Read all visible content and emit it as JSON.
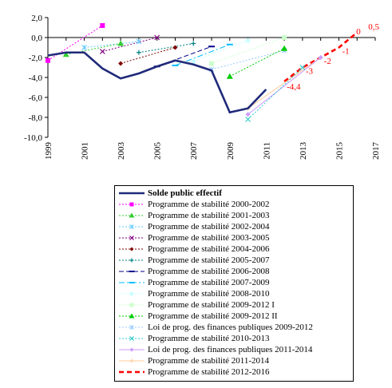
{
  "chart_data": {
    "type": "line",
    "title": "",
    "xlabel": "",
    "ylabel": "",
    "ylim": [
      -10,
      2
    ],
    "xlim": [
      1999,
      2017
    ],
    "y_ticks": [
      "2,0",
      "0,0",
      "-2,0",
      "-4,0",
      "-6,0",
      "-8,0",
      "-10,0"
    ],
    "x_ticks": [
      "1999",
      "2001",
      "2003",
      "2005",
      "2007",
      "2009",
      "2011",
      "2013",
      "2015",
      "2017"
    ],
    "grid": false,
    "legend_position": "bottom",
    "series": [
      {
        "name": "Solde public effectif",
        "color": "#1f2a7a",
        "style": "solid-bold",
        "marker": "none",
        "x": [
          1999,
          2000,
          2001,
          2002,
          2003,
          2004,
          2005,
          2006,
          2007,
          2008,
          2009,
          2010,
          2011
        ],
        "y": [
          -1.8,
          -1.5,
          -1.5,
          -3.1,
          -4.1,
          -3.6,
          -2.9,
          -2.3,
          -2.7,
          -3.3,
          -7.5,
          -7.1,
          -5.2
        ]
      },
      {
        "name": "Programme de stabilité 2000-2002",
        "color": "#ff00ff",
        "style": "dotted",
        "marker": "square",
        "x": [
          1999,
          2002
        ],
        "y": [
          -2.3,
          1.2
        ]
      },
      {
        "name": "Programme de stabilité 2001-2003",
        "color": "#33cc33",
        "style": "dotted",
        "marker": "triangle",
        "x": [
          2000,
          2003
        ],
        "y": [
          -1.7,
          -0.6
        ]
      },
      {
        "name": "Programme de stabilité 2002-2004",
        "color": "#66ccff",
        "style": "dotted",
        "marker": "cross",
        "x": [
          2001,
          2004
        ],
        "y": [
          -1.0,
          -0.4
        ]
      },
      {
        "name": "Programme de stabilité 2003-2005",
        "color": "#800080",
        "style": "dotted",
        "marker": "x",
        "x": [
          2002,
          2005
        ],
        "y": [
          -1.4,
          0.0
        ]
      },
      {
        "name": "Programme de stabilité 2004-2006",
        "color": "#800000",
        "style": "dotted",
        "marker": "diamond",
        "x": [
          2003,
          2006
        ],
        "y": [
          -2.6,
          -1.0
        ]
      },
      {
        "name": "Programme de stabilité 2005-2007",
        "color": "#008080",
        "style": "dotted",
        "marker": "plus",
        "x": [
          2004,
          2007
        ],
        "y": [
          -1.5,
          -0.6
        ]
      },
      {
        "name": "Programme de stabilité 2006-2008",
        "color": "#00008b",
        "style": "dashed",
        "marker": "dash",
        "x": [
          2005,
          2008
        ],
        "y": [
          -2.9,
          -0.9
        ]
      },
      {
        "name": "Programme de stabilité 2007-2009",
        "color": "#00bfff",
        "style": "dashdot",
        "marker": "dash",
        "x": [
          2006,
          2009
        ],
        "y": [
          -2.8,
          -0.7
        ]
      },
      {
        "name": "Programme de stabilité 2008-2010",
        "color": "#ccffff",
        "style": "dotted",
        "marker": "circle",
        "x": [
          2007,
          2010
        ],
        "y": [
          -2.4,
          -0.3
        ]
      },
      {
        "name": "Programme de stabilité 2009-2012 I",
        "color": "#ccffcc",
        "style": "dotted",
        "marker": "square",
        "x": [
          2008,
          2012
        ],
        "y": [
          -2.6,
          0.0
        ]
      },
      {
        "name": "Programme de stabilité 2009-2012 II",
        "color": "#00cc00",
        "style": "dotted",
        "marker": "triangle",
        "x": [
          2009,
          2012
        ],
        "y": [
          -3.9,
          -1.1
        ]
      },
      {
        "name": "Loi de prog. des finances publiques 2009-2012",
        "color": "#99ccff",
        "style": "dotted",
        "marker": "cross",
        "x": [
          2008,
          2012
        ],
        "y": [
          -3.2,
          -1.3
        ]
      },
      {
        "name": "Programme de stabilité 2010-2013",
        "color": "#33cccc",
        "style": "dotted",
        "marker": "x",
        "x": [
          2010,
          2013
        ],
        "y": [
          -8.2,
          -3.0
        ]
      },
      {
        "name": "Loi de prog. des finances publiques 2011-2014",
        "color": "#cc99ff",
        "style": "solid",
        "marker": "diamond",
        "x": [
          2010,
          2014
        ],
        "y": [
          -7.7,
          -2.0
        ]
      },
      {
        "name": "Programme de stabilité 2011-2014",
        "color": "#ffcc99",
        "style": "solid",
        "marker": "plus",
        "x": [
          2010,
          2014
        ],
        "y": [
          -7.1,
          -2.0
        ]
      },
      {
        "name": "Programme de stabilité 2012-2016",
        "color": "#ff0000",
        "style": "dashed-bold",
        "marker": "none",
        "x": [
          2012,
          2013,
          2014,
          2015,
          2016
        ],
        "y": [
          -4.4,
          -3.0,
          -2.0,
          -1.0,
          0.5
        ]
      }
    ],
    "annotations": [
      {
        "text": "-4,4",
        "x": 2012,
        "y": -4.4
      },
      {
        "text": "-3",
        "x": 2013,
        "y": -3.0
      },
      {
        "text": "-2",
        "x": 2014,
        "y": -2.0
      },
      {
        "text": "-1",
        "x": 2015,
        "y": -1.0
      },
      {
        "text": "0",
        "x": 2016,
        "y": 0.0
      },
      {
        "text": "0,5",
        "x": 2016,
        "y": 0.5
      }
    ]
  }
}
